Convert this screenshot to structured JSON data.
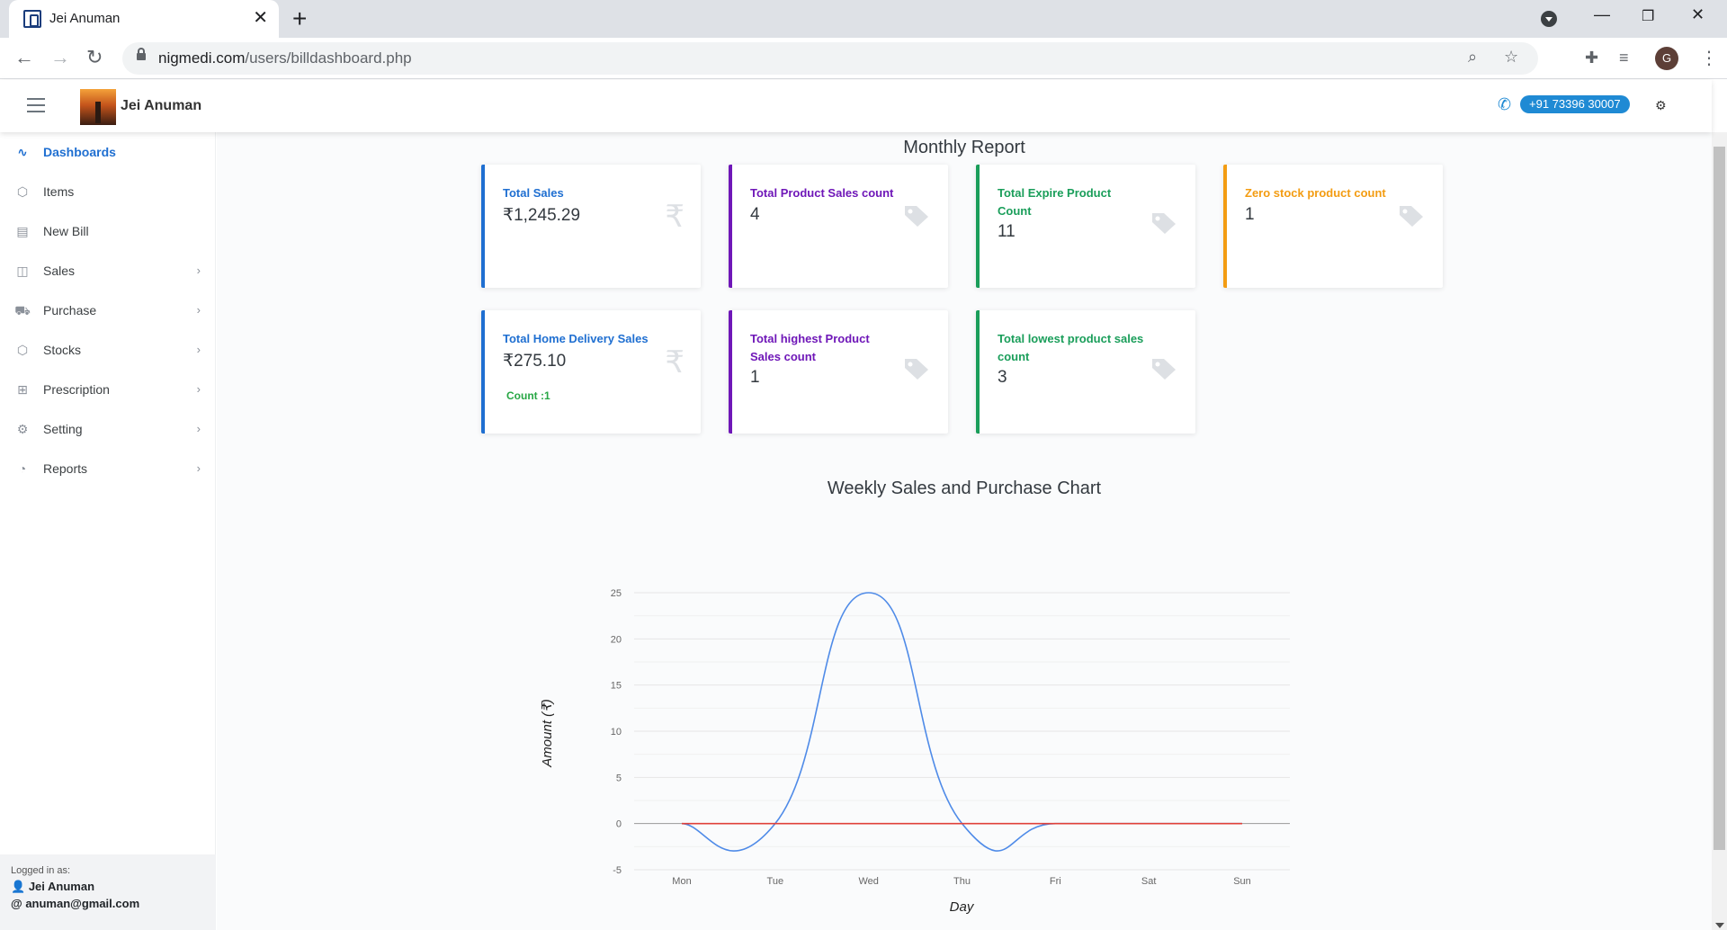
{
  "browser": {
    "tab_title": "Jei Anuman",
    "url_host": "nigmedi.com",
    "url_path": "/users/billdashboard.php",
    "profile_initial": "G"
  },
  "header": {
    "brand_name": "Jei Anuman",
    "phone": "+91 73396 30007"
  },
  "sidebar": {
    "items": [
      {
        "label": "Dashboards",
        "icon": "activity-icon",
        "active": true
      },
      {
        "label": "Items",
        "icon": "box-icon"
      },
      {
        "label": "New Bill",
        "icon": "file-icon"
      },
      {
        "label": "Sales",
        "icon": "bag-icon"
      },
      {
        "label": "Purchase",
        "icon": "cart-icon"
      },
      {
        "label": "Stocks",
        "icon": "box-icon"
      },
      {
        "label": "Prescription",
        "icon": "plus-square-icon"
      },
      {
        "label": "Setting",
        "icon": "gear-icon"
      },
      {
        "label": "Reports",
        "icon": "pie-chart-icon"
      }
    ],
    "footer": {
      "logged_in_label": "Logged in as:",
      "user_name": "Jei Anuman",
      "email": "anuman@gmail.com"
    }
  },
  "main": {
    "report_title": "Monthly Report",
    "cards": [
      {
        "label": "Total Sales",
        "value": "₹1,245.29",
        "color": "#1f6fd1",
        "icon": "rupee-icon"
      },
      {
        "label": "Total Product Sales count",
        "value": "4",
        "color": "#6f17b8",
        "icon": "tag-icon"
      },
      {
        "label": "Total Expire Product Count",
        "value": "11",
        "color": "#1a9e5a",
        "icon": "tag-icon"
      },
      {
        "label": "Zero stock product count",
        "value": "1",
        "color": "#f39c12",
        "icon": "tag-icon"
      },
      {
        "label": "Total Home Delivery Sales",
        "value": "₹275.10",
        "sub": "Count :1",
        "color": "#1f6fd1",
        "icon": "rupee-icon"
      },
      {
        "label": "Total highest Product Sales count",
        "value": "1",
        "color": "#6f17b8",
        "icon": "tag-icon"
      },
      {
        "label": "Total lowest product sales count",
        "value": "3",
        "color": "#1a9e5a",
        "icon": "tag-icon"
      }
    ],
    "chart_title": "Weekly Sales and Purchase Chart"
  },
  "chart_data": {
    "type": "line",
    "title": "Weekly Sales and Purchase Chart",
    "xlabel": "Day",
    "ylabel": "Amount (₹)",
    "categories": [
      "Mon",
      "Tue",
      "Wed",
      "Thu",
      "Fri",
      "Sat",
      "Sun"
    ],
    "ylim": [
      -5,
      25
    ],
    "yticks": [
      -5,
      0,
      5,
      10,
      15,
      20,
      25
    ],
    "grid": true,
    "legend": "none",
    "series": [
      {
        "color": "#4f8be8",
        "values": [
          0,
          0,
          25,
          0,
          0,
          0,
          0
        ],
        "smooth": true
      },
      {
        "color": "#e0413a",
        "values": [
          0,
          0,
          0,
          0,
          0,
          0,
          0
        ]
      }
    ]
  }
}
